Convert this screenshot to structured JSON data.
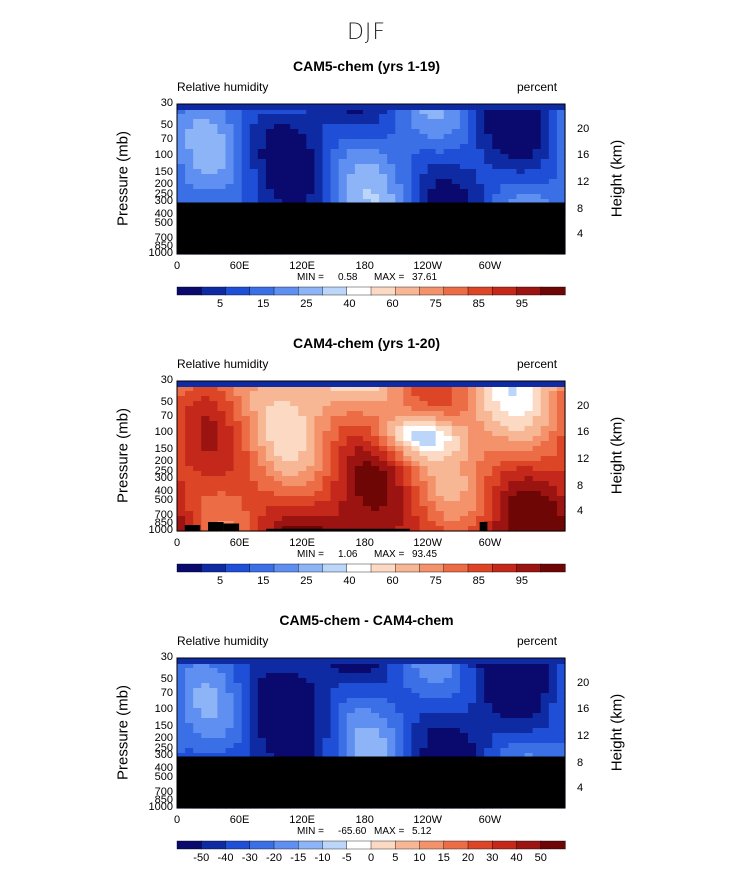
{
  "title": "DJF",
  "chart_data": [
    {
      "type": "heatmap",
      "title": "CAM5-chem (yrs 1-19)",
      "left_label": "Relative humidity",
      "right_label": "percent",
      "ylabel": "Pressure  (mb)",
      "y2label": "Height  (km)",
      "x_ticks": [
        "0",
        "60E",
        "120E",
        "180",
        "120W",
        "60W"
      ],
      "y_ticks": [
        "30",
        "50",
        "70",
        "100",
        "150",
        "200",
        "250",
        "300",
        "400",
        "500",
        "700",
        "850",
        "1000"
      ],
      "y2_ticks": [
        "20",
        "16",
        "12",
        "8",
        "4"
      ],
      "min_label": "MIN =",
      "min_value": "0.58",
      "max_label": "MAX =",
      "max_value": "37.61",
      "colorbar_ticks": [
        "5",
        "15",
        "25",
        "40",
        "60",
        "75",
        "85",
        "95"
      ],
      "field_base": 0.15,
      "no_data_below_mb": 300
    },
    {
      "type": "heatmap",
      "title": "CAM4-chem (yrs 1-20)",
      "left_label": "Relative humidity",
      "right_label": "percent",
      "ylabel": "Pressure  (mb)",
      "y2label": "Height  (km)",
      "x_ticks": [
        "0",
        "60E",
        "120E",
        "180",
        "120W",
        "60W"
      ],
      "y_ticks": [
        "30",
        "50",
        "70",
        "100",
        "150",
        "200",
        "250",
        "300",
        "400",
        "500",
        "700",
        "850",
        "1000"
      ],
      "y2_ticks": [
        "20",
        "16",
        "12",
        "8",
        "4"
      ],
      "min_label": "MIN =",
      "min_value": "1.06",
      "max_label": "MAX =",
      "max_value": "93.45",
      "colorbar_ticks": [
        "5",
        "15",
        "25",
        "40",
        "60",
        "75",
        "85",
        "95"
      ],
      "field_base": 0.62,
      "no_data_below_mb": 1000
    },
    {
      "type": "heatmap",
      "title": "CAM5-chem - CAM4-chem",
      "left_label": "Relative humidity",
      "right_label": "percent",
      "ylabel": "Pressure  (mb)",
      "y2label": "Height  (km)",
      "x_ticks": [
        "0",
        "60E",
        "120E",
        "180",
        "120W",
        "60W"
      ],
      "y_ticks": [
        "30",
        "50",
        "70",
        "100",
        "150",
        "200",
        "250",
        "300",
        "400",
        "500",
        "700",
        "850",
        "1000"
      ],
      "y2_ticks": [
        "20",
        "16",
        "12",
        "8",
        "4"
      ],
      "min_label": "MIN =",
      "min_value": "-65.60",
      "max_label": "MAX =",
      "max_value": "5.12",
      "colorbar_ticks": [
        "-50",
        "-40",
        "-30",
        "-20",
        "-15",
        "-10",
        "-5",
        "0",
        "5",
        "10",
        "15",
        "20",
        "30",
        "40",
        "50"
      ],
      "field_base": 0.12,
      "no_data_below_mb": 300
    }
  ],
  "palette": [
    "#0a0a6e",
    "#0f2ba3",
    "#1f4fd6",
    "#3b6fe6",
    "#5f8ff0",
    "#8db4f6",
    "#bcd6fa",
    "#ffffff",
    "#fbd9c2",
    "#f7b694",
    "#f3926b",
    "#ec6c45",
    "#dd4527",
    "#c3281a",
    "#9c1411",
    "#6e0606"
  ],
  "colors": {
    "frame": "#000000",
    "no_data": "#000000"
  }
}
